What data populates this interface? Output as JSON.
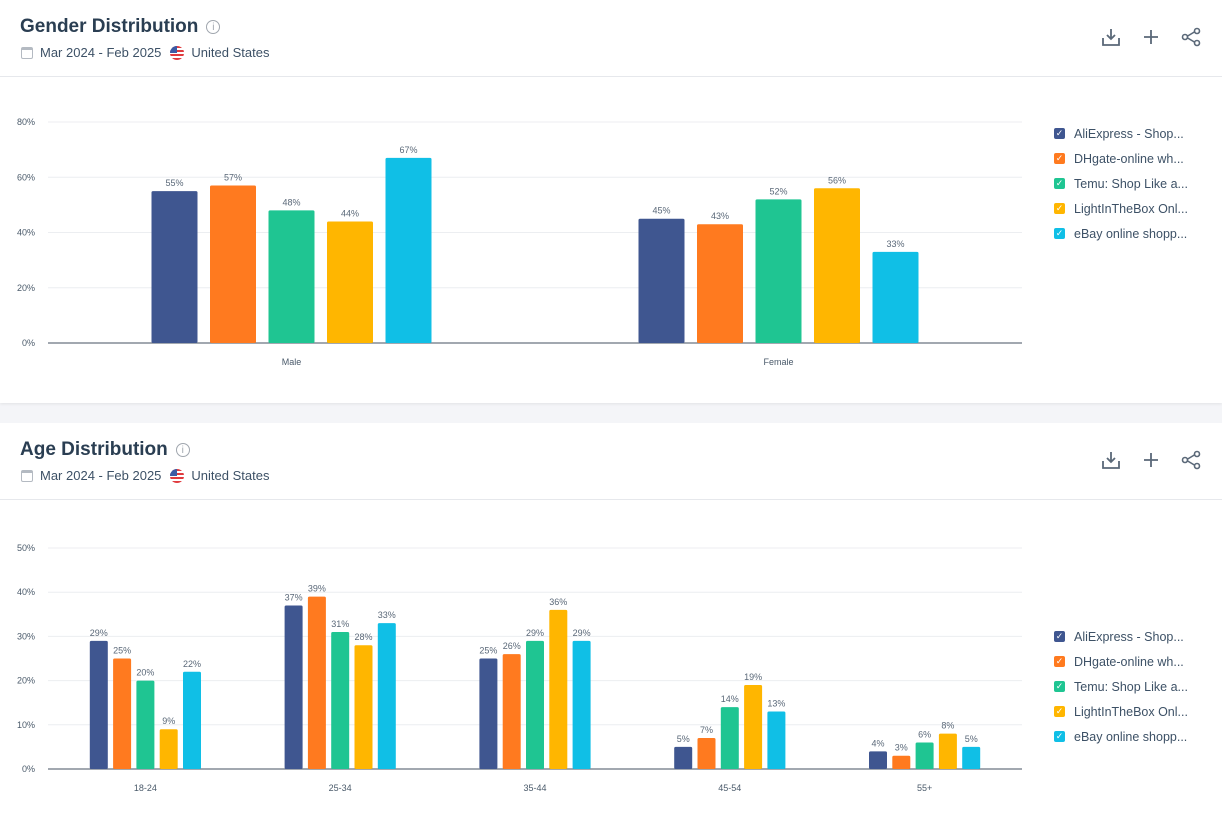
{
  "series_colors": [
    "#3f5690",
    "#ff7a1f",
    "#1fc592",
    "#ffb600",
    "#10bfe6"
  ],
  "actions": [
    {
      "name": "download-icon"
    },
    {
      "name": "add-icon"
    },
    {
      "name": "share-icon"
    }
  ],
  "cards": [
    {
      "title": "Gender Distribution",
      "date_range": "Mar 2024 - Feb 2025",
      "country": "United States",
      "legend": [
        "AliExpress - Shop...",
        "DHgate-online wh...",
        "Temu: Shop Like a...",
        "LightInTheBox Onl...",
        "eBay online shopp..."
      ]
    },
    {
      "title": "Age Distribution",
      "date_range": "Mar 2024 - Feb 2025",
      "country": "United States",
      "legend": [
        "AliExpress - Shop...",
        "DHgate-online wh...",
        "Temu: Shop Like a...",
        "LightInTheBox Onl...",
        "eBay online shopp..."
      ]
    }
  ],
  "chart_data": [
    {
      "type": "bar",
      "categories": [
        "Male",
        "Female"
      ],
      "ylim": [
        0,
        80
      ],
      "yticks": [
        "0%",
        "20%",
        "40%",
        "60%",
        "80%"
      ],
      "yticks_values": [
        0,
        20,
        40,
        60,
        80
      ],
      "grid": true,
      "legend_placement": "right",
      "series": [
        {
          "name": "AliExpress - Shop...",
          "values": [
            55,
            45
          ]
        },
        {
          "name": "DHgate-online wh...",
          "values": [
            57,
            43
          ]
        },
        {
          "name": "Temu: Shop Like a...",
          "values": [
            48,
            52
          ]
        },
        {
          "name": "LightInTheBox Onl...",
          "values": [
            44,
            56
          ]
        },
        {
          "name": "eBay online shopp...",
          "values": [
            67,
            33
          ]
        }
      ]
    },
    {
      "type": "bar",
      "categories": [
        "18-24",
        "25-34",
        "35-44",
        "45-54",
        "55+"
      ],
      "ylim": [
        0,
        50
      ],
      "yticks": [
        "0%",
        "10%",
        "20%",
        "30%",
        "40%",
        "50%"
      ],
      "yticks_values": [
        0,
        10,
        20,
        30,
        40,
        50
      ],
      "grid": true,
      "legend_placement": "right",
      "series": [
        {
          "name": "AliExpress - Shop...",
          "values": [
            29,
            37,
            25,
            5,
            4
          ]
        },
        {
          "name": "DHgate-online wh...",
          "values": [
            25,
            39,
            26,
            7,
            3
          ]
        },
        {
          "name": "Temu: Shop Like a...",
          "values": [
            20,
            31,
            29,
            14,
            6
          ]
        },
        {
          "name": "LightInTheBox Onl...",
          "values": [
            9,
            28,
            36,
            19,
            8
          ]
        },
        {
          "name": "eBay online shopp...",
          "values": [
            22,
            33,
            29,
            13,
            5
          ]
        }
      ]
    }
  ]
}
